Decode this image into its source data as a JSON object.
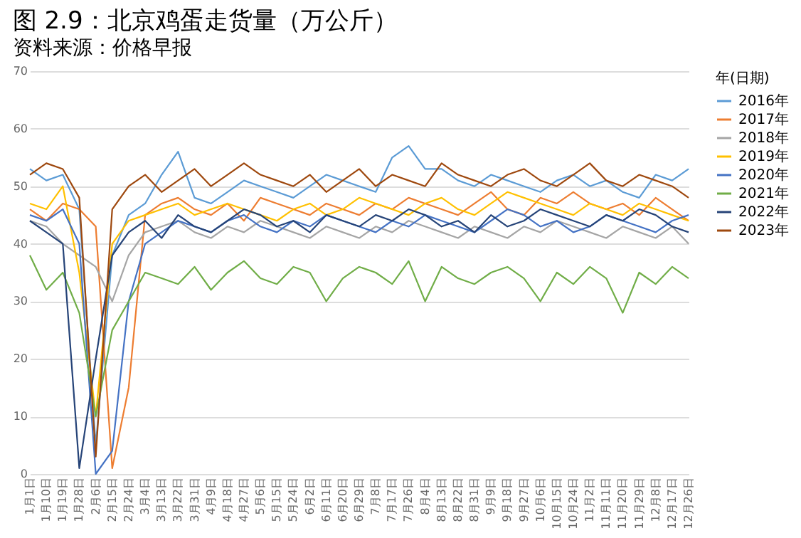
{
  "chart_data": {
    "type": "line",
    "title": "图 2.9：北京鸡蛋走货量（万公斤）",
    "categories": [
      "1月1日",
      "1月10日",
      "1月19日",
      "1月28日",
      "2月6日",
      "2月15日",
      "2月24日",
      "3月4日",
      "3月13日",
      "3月22日",
      "3月31日",
      "4月9日",
      "4月18日",
      "4月27日",
      "5月6日",
      "5月15日",
      "5月24日",
      "6月2日",
      "6月11日",
      "6月20日",
      "6月29日",
      "7月8日",
      "7月17日",
      "7月26日",
      "8月4日",
      "8月13日",
      "8月22日",
      "8月31日",
      "9月9日",
      "9月18日",
      "9月27日",
      "10月6日",
      "10月15日",
      "10月24日",
      "11月2日",
      "11月11日",
      "11月20日",
      "11月29日",
      "12月8日",
      "12月17日",
      "12月26日"
    ],
    "series": [
      {
        "name": "2016年",
        "color": "#5b9bd5",
        "values": [
          53,
          51,
          52,
          46,
          5,
          38,
          45,
          47,
          52,
          56,
          48,
          47,
          49,
          51,
          50,
          49,
          48,
          50,
          52,
          51,
          50,
          49,
          55,
          57,
          53,
          53,
          51,
          50,
          52,
          51,
          50,
          49,
          51,
          52,
          50,
          51,
          49,
          48,
          52,
          51,
          53
        ]
      },
      {
        "name": "2017年",
        "color": "#ed7d31",
        "values": [
          46,
          44,
          47,
          46,
          43,
          1,
          15,
          45,
          47,
          48,
          46,
          45,
          47,
          44,
          48,
          47,
          46,
          45,
          47,
          46,
          45,
          47,
          46,
          48,
          47,
          46,
          45,
          47,
          49,
          46,
          45,
          48,
          47,
          49,
          47,
          46,
          47,
          45,
          48,
          46,
          44
        ]
      },
      {
        "name": "2018年",
        "color": "#a5a5a5",
        "values": [
          44,
          43,
          40,
          38,
          36,
          30,
          38,
          42,
          43,
          44,
          42,
          41,
          43,
          42,
          44,
          43,
          42,
          41,
          43,
          42,
          41,
          43,
          42,
          44,
          43,
          42,
          41,
          43,
          42,
          41,
          43,
          42,
          44,
          43,
          42,
          41,
          43,
          42,
          41,
          43,
          40
        ]
      },
      {
        "name": "2019年",
        "color": "#ffc000",
        "values": [
          47,
          46,
          50,
          35,
          10,
          40,
          44,
          45,
          46,
          47,
          45,
          46,
          47,
          46,
          45,
          44,
          46,
          47,
          45,
          46,
          48,
          47,
          46,
          45,
          47,
          48,
          46,
          45,
          47,
          49,
          48,
          47,
          46,
          45,
          47,
          46,
          45,
          47,
          46,
          45,
          44
        ]
      },
      {
        "name": "2020年",
        "color": "#4472c4",
        "values": [
          45,
          44,
          46,
          40,
          0,
          4,
          30,
          40,
          42,
          44,
          43,
          42,
          44,
          45,
          43,
          42,
          44,
          43,
          45,
          44,
          43,
          42,
          44,
          43,
          45,
          44,
          43,
          42,
          44,
          46,
          45,
          43,
          44,
          42,
          43,
          45,
          44,
          43,
          42,
          44,
          45
        ]
      },
      {
        "name": "2021年",
        "color": "#70ad47",
        "values": [
          38,
          32,
          35,
          28,
          10,
          25,
          30,
          35,
          34,
          33,
          36,
          32,
          35,
          37,
          34,
          33,
          36,
          35,
          30,
          34,
          36,
          35,
          33,
          37,
          30,
          36,
          34,
          33,
          35,
          36,
          34,
          30,
          35,
          33,
          36,
          34,
          28,
          35,
          33,
          36,
          34
        ]
      },
      {
        "name": "2022年",
        "color": "#264478",
        "values": [
          44,
          42,
          40,
          1,
          20,
          38,
          42,
          44,
          41,
          45,
          43,
          42,
          44,
          46,
          45,
          43,
          44,
          42,
          45,
          44,
          43,
          45,
          44,
          46,
          45,
          43,
          44,
          42,
          45,
          43,
          44,
          46,
          45,
          44,
          43,
          45,
          44,
          46,
          45,
          43,
          42
        ]
      },
      {
        "name": "2023年",
        "color": "#9e480e",
        "values": [
          52,
          54,
          53,
          48,
          3,
          46,
          50,
          52,
          49,
          51,
          53,
          50,
          52,
          54,
          52,
          51,
          50,
          52,
          49,
          51,
          53,
          50,
          52,
          51,
          50,
          54,
          52,
          51,
          50,
          52,
          53,
          51,
          50,
          52,
          54,
          51,
          50,
          52,
          51,
          50,
          48
        ]
      }
    ],
    "legend_title": "年(日期)",
    "legend": "right",
    "ylim": [
      0,
      70
    ],
    "yticks": [
      0,
      10,
      20,
      30,
      40,
      50,
      60,
      70
    ],
    "grid": "y",
    "marker": "none",
    "line_style": "solid",
    "annotations": [
      "资料来源：价格早报"
    ]
  }
}
